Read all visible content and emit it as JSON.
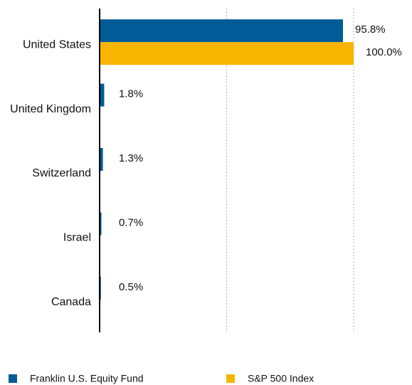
{
  "chart_data": {
    "type": "bar",
    "orientation": "horizontal",
    "categories": [
      "United States",
      "United Kingdom",
      "Switzerland",
      "Israel",
      "Canada"
    ],
    "series": [
      {
        "name": "Franklin U.S. Equity Fund",
        "color": "#005b96",
        "values": [
          95.8,
          1.8,
          1.3,
          0.7,
          0.5
        ],
        "value_labels": [
          "95.8%",
          "1.8%",
          "1.3%",
          "0.7%",
          "0.5%"
        ]
      },
      {
        "name": "S&P 500 Index",
        "color": "#f7b500",
        "values": [
          100.0,
          null,
          null,
          null,
          null
        ],
        "value_labels": [
          "100.0%",
          null,
          null,
          null,
          null
        ]
      }
    ],
    "xlim": [
      0,
      100
    ],
    "xticks": [
      50,
      100
    ],
    "grid": true,
    "legend": "bottom"
  }
}
